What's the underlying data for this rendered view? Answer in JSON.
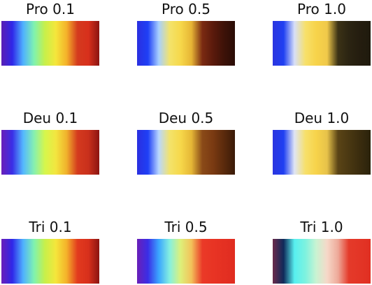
{
  "panels": [
    {
      "title": "Pro 0.1",
      "colors": [
        "#5a1fb3",
        "#2f27e8",
        "#4fb1ff",
        "#7ff2b0",
        "#c7f04a",
        "#f5e63b",
        "#f4b12a",
        "#d43a1e",
        "#d8301c",
        "#8b1512"
      ]
    },
    {
      "title": "Pro 0.5",
      "colors": [
        "#2a2fe0",
        "#1f3ff6",
        "#a8d0ff",
        "#f3e36b",
        "#f6d84a",
        "#e7b535",
        "#7a2a12",
        "#5a1a0c",
        "#3d1208",
        "#2a0c06"
      ]
    },
    {
      "title": "Pro 1.0",
      "colors": [
        "#2b35df",
        "#1f3ff2",
        "#d7dff8",
        "#f7e06b",
        "#f7d34a",
        "#f0c94a",
        "#3b3216",
        "#2b2412",
        "#241d0f",
        "#1f1a0e"
      ]
    },
    {
      "title": "Deu 0.1",
      "colors": [
        "#6a1fb8",
        "#3a2ee6",
        "#54b8ff",
        "#86f0b0",
        "#d6f64c",
        "#f3e63f",
        "#f0b12c",
        "#d43a1e",
        "#c9301c",
        "#8b1512"
      ]
    },
    {
      "title": "Deu 0.5",
      "colors": [
        "#2a2fe0",
        "#1f3ff6",
        "#b9d7ff",
        "#f3e36b",
        "#f6d84a",
        "#e6b736",
        "#8a4a18",
        "#7a3a12",
        "#5a2a0c",
        "#3a1a08"
      ]
    },
    {
      "title": "Deu 1.0",
      "colors": [
        "#2b35df",
        "#1f3ff2",
        "#dfe5f5",
        "#f7e06b",
        "#f7d34a",
        "#e7c24a",
        "#5a4416",
        "#4a3812",
        "#3a2c0e",
        "#2a220c"
      ]
    },
    {
      "title": "Tri 0.1",
      "colors": [
        "#6a1fb8",
        "#2f27e8",
        "#4fb1ff",
        "#7ff2b0",
        "#c7f04a",
        "#f5e63b",
        "#f4b12a",
        "#e23a1e",
        "#d8301c",
        "#8b1512"
      ]
    },
    {
      "title": "Tri 0.5",
      "colors": [
        "#6a1fb8",
        "#3a2ee6",
        "#3aa6ff",
        "#86f0e0",
        "#ddf07a",
        "#f3c25a",
        "#ea3a28",
        "#e83424",
        "#e43022",
        "#e02c20"
      ]
    },
    {
      "title": "Tri 1.0",
      "colors": [
        "#6a2a4a",
        "#0f2a5a",
        "#57f0f0",
        "#7df2df",
        "#c9f3d2",
        "#f6d8c8",
        "#eeaa9a",
        "#e43a2a",
        "#e33526",
        "#e02f22"
      ]
    }
  ]
}
